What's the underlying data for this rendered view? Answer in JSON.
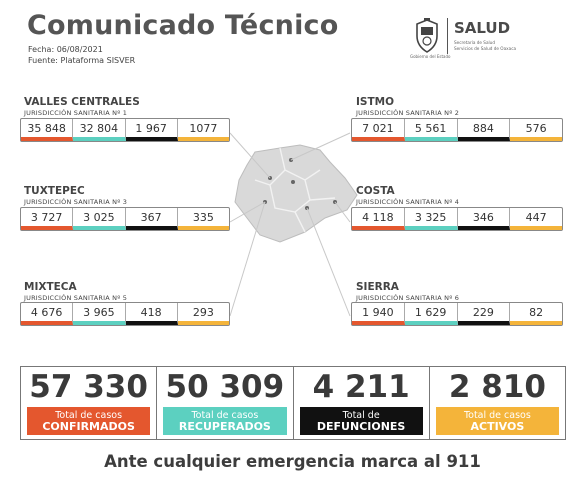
{
  "header": {
    "title": "Comunicado Técnico",
    "date": "Fecha: 06/08/2021",
    "source": "Fuente: Plataforma SISVER",
    "logo_caption": "Gobierno del Estado",
    "salud": "SALUD",
    "salud_sub1": "Secretaría de Salud",
    "salud_sub2": "Servicios de Salud de Oaxaca"
  },
  "regions": [
    {
      "name": "VALLES CENTRALES",
      "sub": "JURISDICCIÓN SANITARIA Nº 1",
      "values": [
        "35 848",
        "32 804",
        "1 967",
        "1077"
      ]
    },
    {
      "name": "ISTMO",
      "sub": "JURISDICCIÓN SANITARIA Nº 2",
      "values": [
        "7 021",
        "5 561",
        "884",
        "576"
      ]
    },
    {
      "name": "TUXTEPEC",
      "sub": "JURISDICCIÓN SANITARIA Nº 3",
      "values": [
        "3 727",
        "3 025",
        "367",
        "335"
      ]
    },
    {
      "name": "COSTA",
      "sub": "JURISDICCIÓN SANITARIA Nº 4",
      "values": [
        "4 118",
        "3 325",
        "346",
        "447"
      ]
    },
    {
      "name": "MIXTECA",
      "sub": "JURISDICCIÓN SANITARIA Nº 5",
      "values": [
        "4 676",
        "3 965",
        "418",
        "293"
      ]
    },
    {
      "name": "SIERRA",
      "sub": "JURISDICCIÓN SANITARIA Nº 6",
      "values": [
        "1 940",
        "1 629",
        "229",
        "82"
      ]
    }
  ],
  "totals": [
    {
      "value": "57 330",
      "label1": "Total de casos",
      "label2": "CONFIRMADOS"
    },
    {
      "value": "50 309",
      "label1": "Total de casos",
      "label2": "RECUPERADOS"
    },
    {
      "value": "4 211",
      "label1": "Total de",
      "label2": "DEFUNCIONES"
    },
    {
      "value": "2 810",
      "label1": "Total de casos",
      "label2": "ACTIVOS"
    }
  ],
  "colors": {
    "confirmados": "#e4572e",
    "recuperados": "#5cd0c0",
    "defunciones": "#111111",
    "activos": "#f4b43a"
  },
  "footer": "Ante cualquier emergencia marca al 911"
}
